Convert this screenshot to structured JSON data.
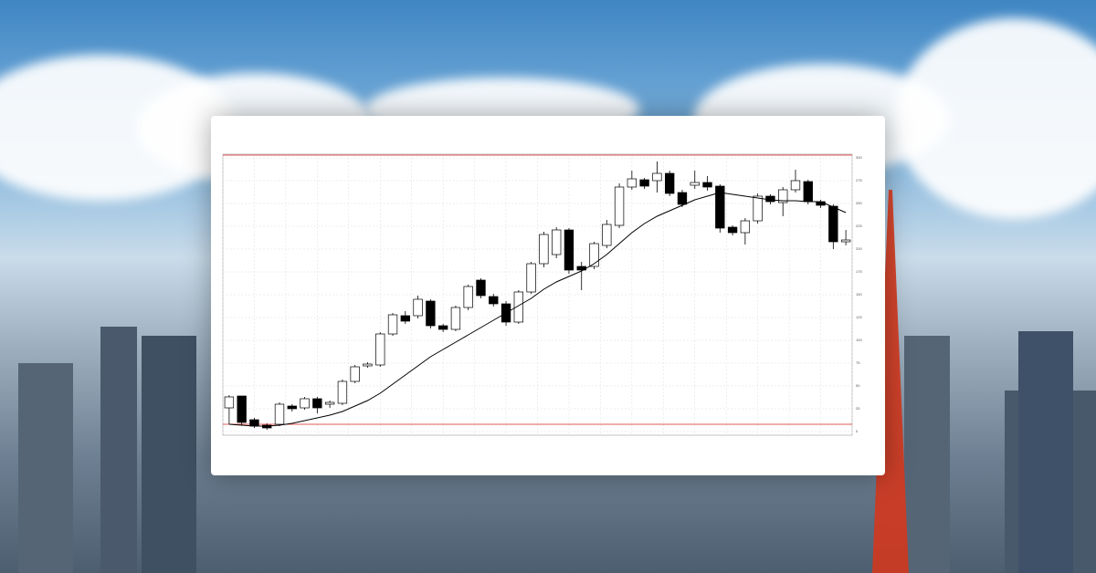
{
  "chart_data": {
    "type": "candlestick",
    "open": [
      26,
      39,
      13,
      7,
      8,
      28,
      26,
      36,
      30,
      31,
      55,
      72,
      73,
      107,
      127,
      127,
      143,
      116,
      112,
      136,
      166,
      148,
      140,
      120,
      153,
      184,
      194,
      221,
      181,
      181,
      204,
      226,
      268,
      276,
      275,
      283,
      262,
      270,
      273,
      269,
      224,
      218,
      231,
      258,
      251,
      265,
      274,
      252,
      247,
      208
    ],
    "high": [
      40,
      39,
      15,
      9,
      32,
      30,
      38,
      38,
      34,
      57,
      73,
      76,
      109,
      130,
      132,
      149,
      145,
      118,
      138,
      161,
      168,
      151,
      143,
      155,
      186,
      219,
      224,
      223,
      186,
      208,
      232,
      272,
      286,
      278,
      296,
      286,
      265,
      286,
      280,
      271,
      226,
      234,
      261,
      260,
      268,
      287,
      276,
      254,
      249,
      221
    ],
    "low": [
      8,
      7,
      4,
      2,
      6,
      22,
      24,
      20,
      26,
      29,
      53,
      70,
      71,
      105,
      118,
      124,
      113,
      109,
      110,
      133,
      146,
      137,
      116,
      118,
      151,
      180,
      190,
      173,
      155,
      178,
      201,
      223,
      265,
      266,
      262,
      258,
      246,
      266,
      264,
      218,
      215,
      205,
      228,
      249,
      236,
      262,
      249,
      245,
      200,
      204
    ],
    "close": [
      38,
      10,
      6,
      4,
      30,
      25,
      36,
      26,
      32,
      55,
      71,
      74,
      107,
      128,
      121,
      145,
      116,
      112,
      136,
      159,
      149,
      140,
      120,
      153,
      184,
      216,
      221,
      177,
      177,
      206,
      227,
      268,
      277,
      269,
      283,
      261,
      249,
      273,
      268,
      223,
      218,
      231,
      258,
      252,
      265,
      275,
      252,
      248,
      208,
      210
    ],
    "ma": [
      8,
      7,
      6,
      6,
      7,
      9,
      12,
      15,
      18,
      22,
      28,
      34,
      42,
      52,
      62,
      72,
      82,
      90,
      98,
      106,
      114,
      122,
      130,
      138,
      146,
      156,
      164,
      170,
      176,
      184,
      194,
      206,
      218,
      228,
      236,
      242,
      248,
      254,
      258,
      262,
      260,
      258,
      256,
      254,
      253,
      253,
      252,
      252,
      246,
      240
    ],
    "ylim": [
      0,
      300
    ],
    "yticks": [
      0,
      25,
      50,
      75,
      100,
      125,
      150,
      175,
      200,
      225,
      250,
      275,
      300
    ],
    "grid": true,
    "up_color": "#ffffff",
    "down_color": "#000000",
    "line_color": "#000000"
  }
}
